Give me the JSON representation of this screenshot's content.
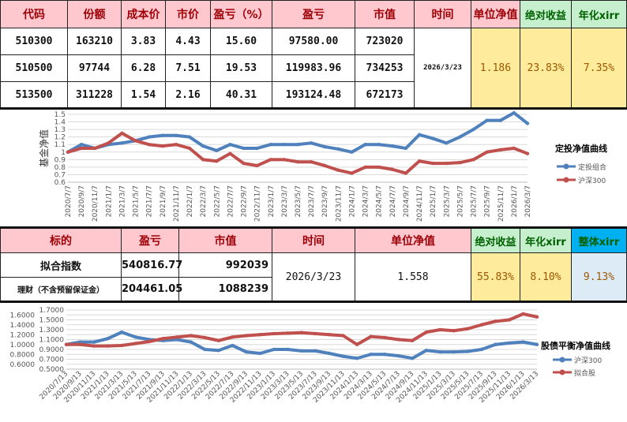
{
  "table1": {
    "headers": [
      "代码",
      "份额",
      "成本价",
      "市价",
      "盈亏（%）",
      "盈亏",
      "市值",
      "时间",
      "单位净值",
      "绝对收益",
      "年化xirr"
    ],
    "rows": [
      [
        "510300",
        "163210",
        "3.83",
        "4.43",
        "15.60",
        "97580.00",
        "723020"
      ],
      [
        "510500",
        "97744",
        "6.28",
        "7.51",
        "19.53",
        "119983.96",
        "734253"
      ],
      [
        "513500",
        "311228",
        "1.54",
        "2.16",
        "40.31",
        "193124.48",
        "672173"
      ]
    ],
    "date": "2026/3/23",
    "nav": "1.186",
    "abs_return": "23.83%",
    "xirr": "7.35%"
  },
  "table2": {
    "headers": [
      "标的",
      "盈亏",
      "市值",
      "时间",
      "单位净值",
      "绝对收益",
      "年化xirr",
      "整体xirr"
    ],
    "rows": [
      [
        "拟合指数",
        "540816.77",
        "992039"
      ],
      [
        "理财（不含预留保证金）",
        "204461.05",
        "1088239"
      ]
    ],
    "date": "2026/3/23",
    "nav": "1.558",
    "abs_return": "55.83%",
    "xirr": "8.10%",
    "total_xirr": "9.13%"
  },
  "colors": {
    "blue": "#4F81BD",
    "red": "#C0504D",
    "pink": "#FFC7CE",
    "green": "#C6EFCE",
    "yellow": "#FFEB9C",
    "cyan": "#00B0F0"
  },
  "chart_data": [
    {
      "type": "line",
      "title": "定投净值曲线",
      "ylabel": "基金净值",
      "ylim": [
        0.6,
        1.5
      ],
      "yticks": [
        "0.6",
        "0.7",
        "0.8",
        "0.9",
        "1",
        "1.1",
        "1.2",
        "1.3",
        "1.4",
        "1.5"
      ],
      "grid": true,
      "legend": "right",
      "categories": [
        "2020/7/7",
        "2020/9/7",
        "2020/11/7",
        "2021/1/7",
        "2021/3/7",
        "2021/5/7",
        "2021/7/7",
        "2021/9/7",
        "2021/11/7",
        "2022/1/7",
        "2022/3/7",
        "2022/5/7",
        "2022/7/7",
        "2022/9/7",
        "2022/11/7",
        "2023/1/7",
        "2023/3/7",
        "2023/5/7",
        "2023/7/7",
        "2023/9/7",
        "2023/11/7",
        "2024/1/7",
        "2024/3/7",
        "2024/5/7",
        "2024/7/7",
        "2024/9/7",
        "2024/11/7",
        "2025/1/7",
        "2025/3/7",
        "2025/5/7",
        "2025/7/7",
        "2025/9/7",
        "2025/11/7",
        "2026/1/7",
        "2026/3/7"
      ],
      "series": [
        {
          "name": "定投组合",
          "color": "#4F81BD",
          "values": [
            1.0,
            1.1,
            1.05,
            1.1,
            1.12,
            1.15,
            1.2,
            1.22,
            1.22,
            1.2,
            1.08,
            1.02,
            1.1,
            1.05,
            1.05,
            1.1,
            1.1,
            1.1,
            1.12,
            1.07,
            1.04,
            1.0,
            1.1,
            1.1,
            1.08,
            1.05,
            1.23,
            1.18,
            1.12,
            1.2,
            1.3,
            1.42,
            1.42,
            1.52,
            1.38
          ]
        },
        {
          "name": "沪深300",
          "color": "#C0504D",
          "values": [
            1.0,
            1.05,
            1.05,
            1.12,
            1.25,
            1.15,
            1.1,
            1.08,
            1.1,
            1.05,
            0.9,
            0.88,
            0.98,
            0.85,
            0.82,
            0.9,
            0.9,
            0.87,
            0.87,
            0.82,
            0.76,
            0.72,
            0.8,
            0.8,
            0.77,
            0.72,
            0.88,
            0.85,
            0.85,
            0.86,
            0.9,
            1.0,
            1.03,
            1.05,
            0.98
          ]
        }
      ]
    },
    {
      "type": "line",
      "title": "股债平衡净值曲线",
      "ylim": [
        0.5,
        1.7
      ],
      "yticks": [
        "0.5000",
        "0.6000",
        "0.7000",
        "0.8000",
        "0.9000",
        "1.0000",
        "1.1000",
        "1.2000",
        "1.3000",
        "1.4000",
        "1.5000",
        "1.6000",
        "1.7000"
      ],
      "grid": true,
      "legend": "right",
      "categories": [
        "2020/7/13",
        "2020/9/13",
        "2020/11/13",
        "2021/1/13",
        "2021/3/13",
        "2021/5/13",
        "2021/7/13",
        "2021/9/13",
        "2021/11/13",
        "2022/1/13",
        "2022/3/13",
        "2022/5/13",
        "2022/7/13",
        "2022/9/13",
        "2022/11/13",
        "2023/1/13",
        "2023/3/13",
        "2023/5/13",
        "2023/7/13",
        "2023/9/13",
        "2023/11/13",
        "2024/1/13",
        "2024/3/13",
        "2024/5/13",
        "2024/7/13",
        "2024/9/13",
        "2024/11/13",
        "2025/1/13",
        "2025/3/13",
        "2025/5/13",
        "2025/7/13",
        "2025/9/13",
        "2025/11/13",
        "2026/1/13",
        "2026/3/13"
      ],
      "series": [
        {
          "name": "沪深300",
          "color": "#4F81BD",
          "values": [
            1.0,
            1.05,
            1.05,
            1.12,
            1.25,
            1.15,
            1.1,
            1.08,
            1.1,
            1.05,
            0.9,
            0.88,
            0.98,
            0.85,
            0.82,
            0.9,
            0.9,
            0.87,
            0.87,
            0.82,
            0.76,
            0.72,
            0.8,
            0.8,
            0.77,
            0.72,
            0.88,
            0.85,
            0.85,
            0.86,
            0.9,
            1.0,
            1.03,
            1.05,
            1.0
          ]
        },
        {
          "name": "拟合股",
          "color": "#C0504D",
          "values": [
            1.0,
            1.0,
            0.97,
            0.97,
            0.98,
            1.02,
            1.06,
            1.12,
            1.15,
            1.18,
            1.14,
            1.08,
            1.15,
            1.18,
            1.2,
            1.22,
            1.23,
            1.24,
            1.22,
            1.2,
            1.18,
            1.0,
            1.16,
            1.14,
            1.1,
            1.08,
            1.25,
            1.3,
            1.28,
            1.32,
            1.4,
            1.47,
            1.5,
            1.62,
            1.56
          ]
        }
      ]
    }
  ]
}
